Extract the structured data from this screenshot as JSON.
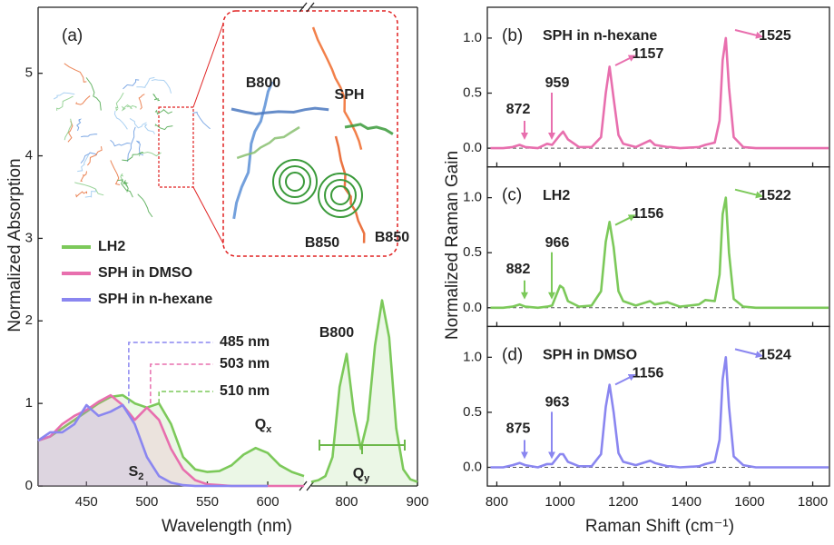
{
  "chart_data": [
    {
      "type": "line",
      "panel": "(a)",
      "xlabel": "Wavelength (nm)",
      "ylabel": "Normalized Absorption",
      "xlim": [
        410,
        900
      ],
      "xbreak": [
        630,
        750
      ],
      "ylim": [
        0,
        5.8
      ],
      "xticks": [
        450,
        500,
        550,
        600,
        800,
        900
      ],
      "yticks": [
        0,
        1,
        2,
        3,
        4,
        5
      ],
      "x": [
        410,
        420,
        430,
        440,
        450,
        460,
        470,
        480,
        490,
        500,
        510,
        520,
        530,
        540,
        550,
        560,
        570,
        580,
        590,
        600,
        610,
        620,
        630,
        750,
        760,
        770,
        780,
        790,
        800,
        810,
        820,
        830,
        840,
        850,
        860,
        870,
        880,
        890,
        900
      ],
      "series": [
        {
          "name": "LH2",
          "color": "#7cc95a",
          "values": [
            0.55,
            0.6,
            0.7,
            0.8,
            0.9,
            1.0,
            1.08,
            1.1,
            1.0,
            0.95,
            1.0,
            0.75,
            0.35,
            0.2,
            0.17,
            0.18,
            0.25,
            0.38,
            0.46,
            0.4,
            0.25,
            0.17,
            0.12,
            0.05,
            0.07,
            0.12,
            0.35,
            1.2,
            1.6,
            0.9,
            0.45,
            0.8,
            1.7,
            2.25,
            1.8,
            0.7,
            0.2,
            0.08,
            0.05
          ]
        },
        {
          "name": "SPH in DMSO",
          "color": "#e86fae",
          "values": [
            0.55,
            0.6,
            0.75,
            0.85,
            0.92,
            1.02,
            1.1,
            0.98,
            0.8,
            0.95,
            0.8,
            0.45,
            0.2,
            0.07,
            0.02,
            0.01,
            0,
            0,
            0,
            0,
            0,
            0,
            0,
            null,
            null,
            null,
            null,
            null,
            null,
            null,
            null,
            null,
            null,
            null,
            null,
            null,
            null,
            null,
            null
          ]
        },
        {
          "name": "SPH in n-hexane",
          "color": "#8a86f0",
          "values": [
            0.55,
            0.65,
            0.65,
            0.75,
            0.98,
            0.85,
            0.9,
            0.98,
            0.75,
            0.35,
            0.12,
            0.04,
            0.01,
            0,
            0,
            0,
            0,
            0,
            0,
            0,
            null,
            null,
            null,
            null,
            null,
            null,
            null,
            null,
            null,
            null,
            null,
            null,
            null,
            null,
            null,
            null,
            null,
            null,
            null
          ]
        }
      ],
      "annotations": [
        {
          "x": 485,
          "label": "485 nm",
          "color": "#8a86f0"
        },
        {
          "x": 503,
          "label": "503 nm",
          "color": "#e86fae"
        },
        {
          "x": 510,
          "label": "510 nm",
          "color": "#7cc95a"
        }
      ],
      "peak_labels": [
        {
          "text": "B800",
          "color": "#6cb84a"
        },
        {
          "text": "B850",
          "color": "#6cb84a"
        },
        {
          "text": "S",
          "sub": "2",
          "color": "#8a86f0"
        },
        {
          "text": "Q",
          "sub": "x",
          "color": "#6cb84a"
        },
        {
          "text": "Q",
          "sub": "y",
          "color": "#6cb84a"
        }
      ],
      "inset_labels": [
        {
          "text": "B800",
          "color": "#5b8fd6"
        },
        {
          "text": "SPH",
          "color": "#f06a2a"
        },
        {
          "text": "B850",
          "color": "#3a9a3a"
        }
      ]
    },
    {
      "type": "line",
      "panel": "(b)",
      "title": "SPH in n-hexane",
      "xlim": [
        770,
        1853
      ],
      "ylim": [
        -0.17,
        1.28
      ],
      "yticks": [
        {
          "value": 0,
          "label": "0.0"
        },
        {
          "value": 0.5,
          "label": "0.5"
        },
        {
          "value": 1,
          "label": "1.0"
        }
      ],
      "xticks": [
        800,
        1000,
        1200,
        1400,
        1600,
        1800
      ],
      "x": [
        780,
        820,
        850,
        872,
        890,
        930,
        959,
        975,
        1000,
        1010,
        1025,
        1060,
        1100,
        1130,
        1145,
        1157,
        1170,
        1185,
        1200,
        1240,
        1285,
        1300,
        1340,
        1350,
        1380,
        1440,
        1460,
        1490,
        1505,
        1515,
        1525,
        1535,
        1550,
        1580,
        1620,
        1700,
        1780,
        1850
      ],
      "series": [
        {
          "name": "SPH in n-hexane",
          "color": "#e86fae",
          "values": [
            0,
            0,
            0.01,
            0.03,
            0.01,
            0,
            0.04,
            0.03,
            0.12,
            0.15,
            0.08,
            0.01,
            0.01,
            0.1,
            0.5,
            0.74,
            0.45,
            0.12,
            0.04,
            0.01,
            0.07,
            0.03,
            0.01,
            0.01,
            0,
            0.01,
            0.03,
            0.05,
            0.25,
            0.8,
            1.0,
            0.55,
            0.1,
            0.01,
            0,
            0,
            0,
            0
          ]
        }
      ],
      "annotations": [
        "872",
        "959",
        "1157",
        "1525"
      ]
    },
    {
      "type": "line",
      "panel": "(c)",
      "title": "LH2",
      "ylabel": "Normalized Raman Gain",
      "xlim": [
        770,
        1853
      ],
      "ylim": [
        -0.17,
        1.28
      ],
      "yticks": [
        {
          "value": 0,
          "label": "0.0"
        },
        {
          "value": 0.5,
          "label": "0.5"
        },
        {
          "value": 1,
          "label": "1.0"
        }
      ],
      "xticks": [
        800,
        1000,
        1200,
        1400,
        1600,
        1800
      ],
      "x": [
        780,
        820,
        850,
        872,
        890,
        930,
        959,
        975,
        1000,
        1010,
        1025,
        1060,
        1100,
        1130,
        1145,
        1157,
        1170,
        1185,
        1200,
        1240,
        1285,
        1300,
        1340,
        1350,
        1380,
        1440,
        1460,
        1490,
        1505,
        1515,
        1525,
        1535,
        1550,
        1580,
        1620,
        1700,
        1780,
        1850
      ],
      "series": [
        {
          "name": "LH2",
          "color": "#7cc95a",
          "values": [
            0,
            0,
            0.01,
            0.03,
            0.01,
            0,
            0.01,
            0.02,
            0.2,
            0.18,
            0.06,
            0.01,
            0.02,
            0.15,
            0.6,
            0.78,
            0.55,
            0.15,
            0.06,
            0.02,
            0.06,
            0.03,
            0.05,
            0.04,
            0.01,
            0.03,
            0.07,
            0.06,
            0.3,
            0.85,
            1.0,
            0.5,
            0.08,
            0.01,
            0,
            0,
            0,
            0
          ]
        }
      ],
      "annotations": [
        "882",
        "966",
        "1156",
        "1522"
      ]
    },
    {
      "type": "line",
      "panel": "(d)",
      "title": "SPH in DMSO",
      "xlabel": "Raman Shift (cm⁻¹)",
      "xlim": [
        770,
        1853
      ],
      "ylim": [
        -0.17,
        1.28
      ],
      "yticks": [
        {
          "value": 0,
          "label": "0.0"
        },
        {
          "value": 0.5,
          "label": "0.5"
        },
        {
          "value": 1,
          "label": "1.0"
        }
      ],
      "xticks": [
        800,
        1000,
        1200,
        1400,
        1600,
        1800
      ],
      "x": [
        780,
        820,
        850,
        872,
        890,
        930,
        959,
        975,
        1000,
        1010,
        1025,
        1060,
        1100,
        1130,
        1145,
        1157,
        1170,
        1185,
        1200,
        1240,
        1285,
        1300,
        1340,
        1350,
        1380,
        1440,
        1460,
        1490,
        1505,
        1515,
        1525,
        1535,
        1550,
        1580,
        1620,
        1700,
        1780,
        1850
      ],
      "series": [
        {
          "name": "SPH in DMSO",
          "color": "#8a86f0",
          "values": [
            0,
            0,
            0.02,
            0.04,
            0.02,
            0,
            0.03,
            0.03,
            0.12,
            0.12,
            0.05,
            0.01,
            0.01,
            0.12,
            0.55,
            0.75,
            0.5,
            0.13,
            0.05,
            0.02,
            0.06,
            0.04,
            0.01,
            0.01,
            0,
            0.01,
            0.03,
            0.05,
            0.25,
            0.8,
            1.0,
            0.55,
            0.1,
            0.02,
            0,
            0,
            0,
            0
          ]
        }
      ],
      "annotations": [
        "875",
        "963",
        "1156",
        "1524"
      ]
    }
  ]
}
